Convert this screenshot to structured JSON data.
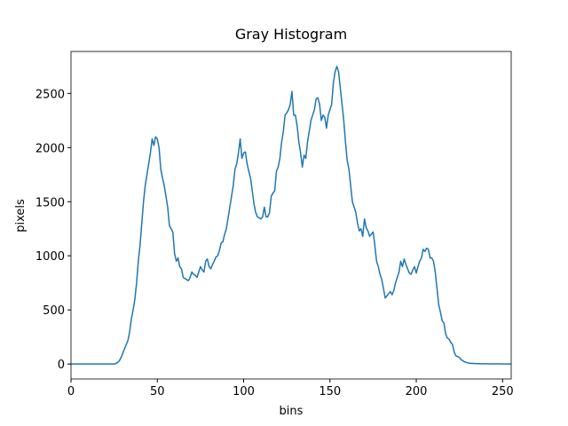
{
  "chart_data": {
    "type": "line",
    "title": "Gray Histogram",
    "x_label": "bins",
    "y_label": "pixels",
    "x": [
      0,
      1,
      2,
      3,
      4,
      5,
      6,
      7,
      8,
      9,
      10,
      11,
      12,
      13,
      14,
      15,
      16,
      17,
      18,
      19,
      20,
      21,
      22,
      23,
      24,
      25,
      26,
      27,
      28,
      29,
      30,
      31,
      32,
      33,
      34,
      35,
      36,
      37,
      38,
      39,
      40,
      41,
      42,
      43,
      44,
      45,
      46,
      47,
      48,
      49,
      50,
      51,
      52,
      53,
      54,
      55,
      56,
      57,
      58,
      59,
      60,
      61,
      62,
      63,
      64,
      65,
      66,
      67,
      68,
      69,
      70,
      71,
      72,
      73,
      74,
      75,
      76,
      77,
      78,
      79,
      80,
      81,
      82,
      83,
      84,
      85,
      86,
      87,
      88,
      89,
      90,
      91,
      92,
      93,
      94,
      95,
      96,
      97,
      98,
      99,
      100,
      101,
      102,
      103,
      104,
      105,
      106,
      107,
      108,
      109,
      110,
      111,
      112,
      113,
      114,
      115,
      116,
      117,
      118,
      119,
      120,
      121,
      122,
      123,
      124,
      125,
      126,
      127,
      128,
      129,
      130,
      131,
      132,
      133,
      134,
      135,
      136,
      137,
      138,
      139,
      140,
      141,
      142,
      143,
      144,
      145,
      146,
      147,
      148,
      149,
      150,
      151,
      152,
      153,
      154,
      155,
      156,
      157,
      158,
      159,
      160,
      161,
      162,
      163,
      164,
      165,
      166,
      167,
      168,
      169,
      170,
      171,
      172,
      173,
      174,
      175,
      176,
      177,
      178,
      179,
      180,
      181,
      182,
      183,
      184,
      185,
      186,
      187,
      188,
      189,
      190,
      191,
      192,
      193,
      194,
      195,
      196,
      197,
      198,
      199,
      200,
      201,
      202,
      203,
      204,
      205,
      206,
      207,
      208,
      209,
      210,
      211,
      212,
      213,
      214,
      215,
      216,
      217,
      218,
      219,
      220,
      221,
      222,
      223,
      224,
      225,
      226,
      227,
      228,
      229,
      230,
      231,
      232,
      233,
      234,
      235,
      236,
      237,
      238,
      239,
      240,
      241,
      242,
      243,
      244,
      245,
      246,
      247,
      248,
      249,
      250,
      251,
      252,
      253,
      254,
      255
    ],
    "series": [
      {
        "name": "gray",
        "color": "#1f77b4",
        "values": [
          0,
          0,
          0,
          0,
          0,
          0,
          0,
          0,
          0,
          0,
          0,
          0,
          0,
          0,
          0,
          0,
          0,
          0,
          0,
          0,
          0,
          0,
          0,
          0,
          0,
          0,
          5,
          15,
          30,
          60,
          100,
          140,
          180,
          220,
          300,
          420,
          500,
          600,
          750,
          950,
          1100,
          1300,
          1500,
          1650,
          1750,
          1850,
          1950,
          2080,
          2020,
          2100,
          2080,
          2000,
          1800,
          1720,
          1650,
          1550,
          1450,
          1280,
          1250,
          1220,
          1020,
          950,
          980,
          900,
          880,
          800,
          790,
          780,
          770,
          800,
          850,
          830,
          820,
          800,
          850,
          900,
          870,
          850,
          950,
          970,
          900,
          880,
          920,
          950,
          990,
          1000,
          1050,
          1120,
          1130,
          1200,
          1250,
          1350,
          1450,
          1550,
          1650,
          1800,
          1850,
          1950,
          2080,
          1900,
          1950,
          1960,
          1850,
          1780,
          1720,
          1600,
          1480,
          1400,
          1360,
          1350,
          1340,
          1360,
          1450,
          1360,
          1360,
          1400,
          1550,
          1580,
          1600,
          1780,
          1820,
          1900,
          2050,
          2150,
          2300,
          2320,
          2350,
          2400,
          2520,
          2300,
          2300,
          2200,
          2050,
          1950,
          1820,
          1930,
          1900,
          2050,
          2150,
          2250,
          2300,
          2350,
          2450,
          2460,
          2400,
          2250,
          2300,
          2280,
          2180,
          2300,
          2350,
          2400,
          2600,
          2700,
          2750,
          2700,
          2550,
          2400,
          2250,
          2050,
          1880,
          1800,
          1650,
          1500,
          1450,
          1400,
          1300,
          1230,
          1250,
          1180,
          1340,
          1260,
          1230,
          1180,
          1200,
          1220,
          1100,
          950,
          900,
          830,
          780,
          700,
          610,
          630,
          650,
          670,
          640,
          680,
          750,
          800,
          850,
          950,
          900,
          970,
          920,
          880,
          840,
          830,
          870,
          900,
          840,
          900,
          950,
          980,
          1060,
          1040,
          1070,
          1060,
          980,
          980,
          950,
          850,
          700,
          550,
          480,
          400,
          380,
          280,
          240,
          230,
          200,
          180,
          110,
          75,
          70,
          60,
          40,
          30,
          20,
          15,
          10,
          8,
          5,
          5,
          4,
          3,
          3,
          3,
          2,
          2,
          2,
          2,
          1,
          1,
          1,
          1,
          1,
          1,
          1,
          1,
          0,
          0,
          0,
          0,
          0,
          0
        ]
      }
    ],
    "xlim": [
      0,
      255
    ],
    "ylim": [
      -138,
      2888
    ],
    "xticks": [
      0,
      50,
      100,
      150,
      200,
      250
    ],
    "yticks": [
      0,
      500,
      1000,
      1500,
      2000,
      2500
    ]
  }
}
